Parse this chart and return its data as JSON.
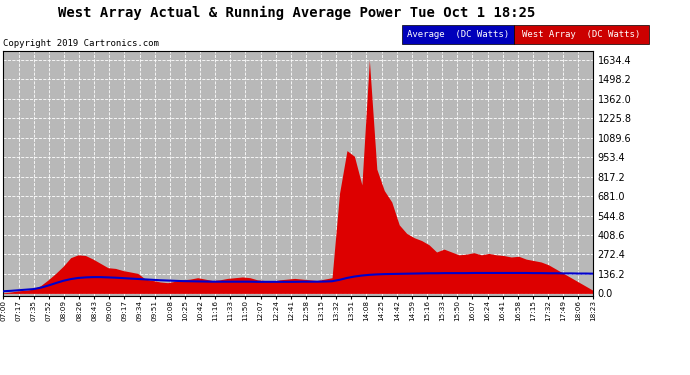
{
  "title": "West Array Actual & Running Average Power Tue Oct 1 18:25",
  "copyright": "Copyright 2019 Cartronics.com",
  "ylabel_right_values": [
    0.0,
    136.2,
    272.4,
    408.6,
    544.8,
    681.0,
    817.2,
    953.4,
    1089.6,
    1225.8,
    1362.0,
    1498.2,
    1634.4
  ],
  "ymax": 1700,
  "ymin": -20,
  "bg_color": "#c8c8c8",
  "plot_bg_color": "#b8b8b8",
  "grid_color": "#d8d8d8",
  "area_color": "#dd0000",
  "line_color": "#0000cc",
  "legend_avg_bg": "#0000cc",
  "legend_west_bg": "#cc0000",
  "legend_avg_text": "Average  (DC Watts)",
  "legend_west_text": "West Array  (DC Watts)",
  "x_tick_labels": [
    "07:00",
    "07:17",
    "07:35",
    "07:52",
    "08:09",
    "08:26",
    "08:43",
    "09:00",
    "09:17",
    "09:34",
    "09:51",
    "10:08",
    "10:25",
    "10:42",
    "11:16",
    "11:33",
    "11:50",
    "12:07",
    "12:24",
    "12:41",
    "12:58",
    "13:15",
    "13:32",
    "13:51",
    "14:08",
    "14:25",
    "14:42",
    "14:59",
    "15:16",
    "15:33",
    "15:50",
    "16:07",
    "16:24",
    "16:41",
    "16:58",
    "17:15",
    "17:32",
    "17:49",
    "18:06",
    "18:23"
  ],
  "west_data": [
    5,
    10,
    18,
    22,
    30,
    55,
    95,
    140,
    190,
    250,
    270,
    265,
    240,
    210,
    180,
    175,
    160,
    150,
    140,
    100,
    90,
    80,
    75,
    85,
    95,
    100,
    110,
    100,
    90,
    95,
    105,
    110,
    115,
    110,
    95,
    90,
    85,
    95,
    100,
    105,
    100,
    95,
    90,
    100,
    110,
    700,
    1000,
    960,
    760,
    1634,
    870,
    720,
    640,
    480,
    420,
    390,
    370,
    340,
    290,
    310,
    290,
    270,
    275,
    285,
    270,
    280,
    270,
    265,
    255,
    260,
    240,
    230,
    220,
    200,
    170,
    140,
    110,
    80,
    50,
    20
  ],
  "avg_data": [
    15,
    18,
    22,
    26,
    30,
    40,
    55,
    72,
    88,
    100,
    108,
    112,
    114,
    114,
    112,
    110,
    107,
    104,
    101,
    98,
    95,
    92,
    90,
    88,
    86,
    85,
    84,
    83,
    82,
    82,
    82,
    82,
    82,
    82,
    81,
    81,
    81,
    81,
    81,
    81,
    82,
    82,
    82,
    83,
    85,
    95,
    108,
    118,
    125,
    130,
    133,
    135,
    136,
    137,
    138,
    139,
    140,
    141,
    141,
    142,
    142,
    142,
    142,
    143,
    143,
    143,
    143,
    143,
    143,
    143,
    143,
    142,
    142,
    141,
    141,
    140,
    140,
    139,
    139,
    138
  ],
  "n_points": 80
}
